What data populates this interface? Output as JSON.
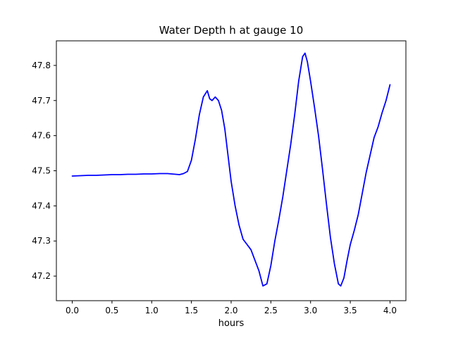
{
  "chart_data": {
    "type": "line",
    "title": "Water Depth h at gauge 10",
    "xlabel": "hours",
    "ylabel": "",
    "line_color": "#0000ff",
    "xlim": [
      -0.2,
      4.2
    ],
    "ylim": [
      47.13,
      47.87
    ],
    "grid": false,
    "xticks": [
      {
        "value": 0.0,
        "label": "0.0"
      },
      {
        "value": 0.5,
        "label": "0.5"
      },
      {
        "value": 1.0,
        "label": "1.0"
      },
      {
        "value": 1.5,
        "label": "1.5"
      },
      {
        "value": 2.0,
        "label": "2.0"
      },
      {
        "value": 2.5,
        "label": "2.5"
      },
      {
        "value": 3.0,
        "label": "3.0"
      },
      {
        "value": 3.5,
        "label": "3.5"
      },
      {
        "value": 4.0,
        "label": "4.0"
      }
    ],
    "yticks": [
      {
        "value": 47.2,
        "label": "47.2"
      },
      {
        "value": 47.3,
        "label": "47.3"
      },
      {
        "value": 47.4,
        "label": "47.4"
      },
      {
        "value": 47.5,
        "label": "47.5"
      },
      {
        "value": 47.6,
        "label": "47.6"
      },
      {
        "value": 47.7,
        "label": "47.7"
      },
      {
        "value": 47.8,
        "label": "47.8"
      }
    ],
    "x": [
      0.0,
      0.1,
      0.2,
      0.3,
      0.4,
      0.5,
      0.6,
      0.7,
      0.8,
      0.9,
      1.0,
      1.1,
      1.2,
      1.3,
      1.35,
      1.4,
      1.45,
      1.5,
      1.55,
      1.6,
      1.65,
      1.7,
      1.73,
      1.76,
      1.8,
      1.84,
      1.88,
      1.92,
      1.96,
      2.0,
      2.05,
      2.1,
      2.15,
      2.2,
      2.25,
      2.3,
      2.35,
      2.4,
      2.45,
      2.5,
      2.55,
      2.6,
      2.65,
      2.7,
      2.75,
      2.8,
      2.85,
      2.9,
      2.93,
      2.96,
      3.0,
      3.05,
      3.1,
      3.15,
      3.2,
      3.25,
      3.3,
      3.35,
      3.38,
      3.42,
      3.46,
      3.5,
      3.55,
      3.6,
      3.65,
      3.7,
      3.75,
      3.8,
      3.85,
      3.9,
      3.95,
      4.0
    ],
    "y": [
      47.485,
      47.486,
      47.487,
      47.487,
      47.488,
      47.489,
      47.489,
      47.49,
      47.49,
      47.491,
      47.491,
      47.492,
      47.492,
      47.49,
      47.489,
      47.492,
      47.498,
      47.53,
      47.59,
      47.66,
      47.71,
      47.728,
      47.705,
      47.7,
      47.71,
      47.7,
      47.672,
      47.62,
      47.545,
      47.47,
      47.4,
      47.345,
      47.305,
      47.29,
      47.275,
      47.245,
      47.215,
      47.172,
      47.178,
      47.23,
      47.3,
      47.36,
      47.425,
      47.5,
      47.575,
      47.66,
      47.755,
      47.825,
      47.835,
      47.81,
      47.755,
      47.68,
      47.6,
      47.505,
      47.405,
      47.31,
      47.235,
      47.178,
      47.172,
      47.195,
      47.245,
      47.29,
      47.33,
      47.375,
      47.435,
      47.495,
      47.545,
      47.595,
      47.625,
      47.665,
      47.7,
      47.745
    ]
  }
}
